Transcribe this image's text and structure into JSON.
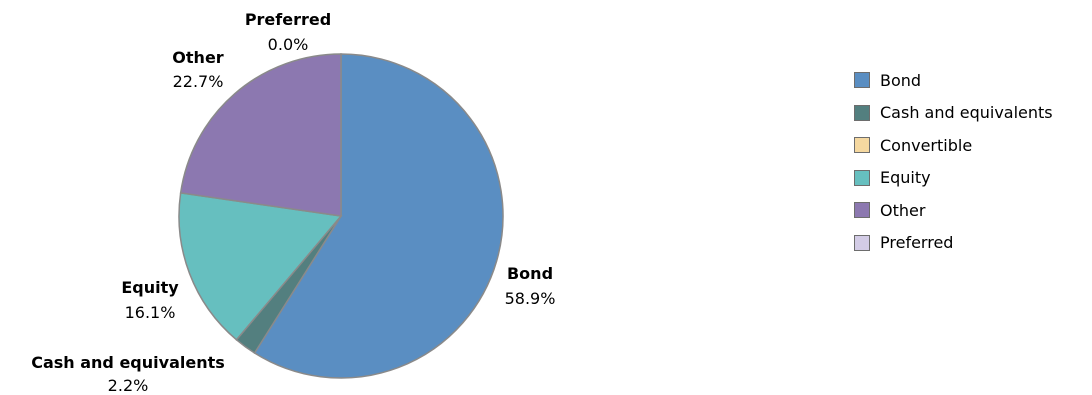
{
  "chart_data": {
    "type": "pie",
    "slices": [
      {
        "name": "Bond",
        "value": 58.9,
        "label": "58.9%",
        "color": "#5a8ec2"
      },
      {
        "name": "Cash and equivalents",
        "value": 2.2,
        "label": "2.2%",
        "color": "#537f7f"
      },
      {
        "name": "Convertible",
        "value": 0.0,
        "label": "",
        "color": "#f5d8a0"
      },
      {
        "name": "Equity",
        "value": 16.1,
        "label": "16.1%",
        "color": "#66bfbf"
      },
      {
        "name": "Other",
        "value": 22.7,
        "label": "22.7%",
        "color": "#8c78b0"
      },
      {
        "name": "Preferred",
        "value": 0.0,
        "label": "0.0%",
        "color": "#d3cce6"
      }
    ],
    "legend": {
      "position": "right",
      "items": [
        {
          "name": "Bond",
          "color": "#5a8ec2"
        },
        {
          "name": "Cash and equivalents",
          "color": "#537f7f"
        },
        {
          "name": "Convertible",
          "color": "#f5d8a0"
        },
        {
          "name": "Equity",
          "color": "#66bfbf"
        },
        {
          "name": "Other",
          "color": "#8c78b0"
        },
        {
          "name": "Preferred",
          "color": "#d3cce6"
        }
      ]
    }
  }
}
